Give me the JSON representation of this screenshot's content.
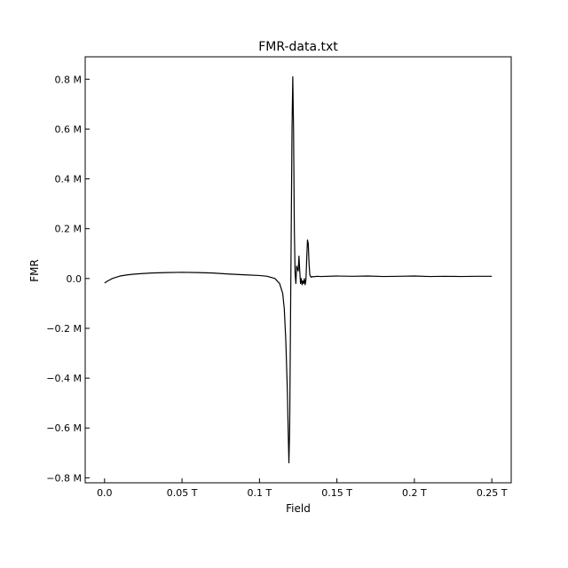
{
  "chart_data": {
    "type": "line",
    "title": "FMR-data.txt",
    "xlabel": "Field",
    "ylabel": "FMR",
    "xlim": [
      -0.0125,
      0.2625
    ],
    "ylim": [
      -820000,
      890000
    ],
    "grid": false,
    "x_ticks": [
      {
        "value": 0.0,
        "label": "0.0"
      },
      {
        "value": 0.05,
        "label": "0.05 T"
      },
      {
        "value": 0.1,
        "label": "0.1 T"
      },
      {
        "value": 0.15,
        "label": "0.15 T"
      },
      {
        "value": 0.2,
        "label": "0.2 T"
      },
      {
        "value": 0.25,
        "label": "0.25 T"
      }
    ],
    "y_ticks": [
      {
        "value": 800000,
        "label": "0.8 M"
      },
      {
        "value": 600000,
        "label": "0.6 M"
      },
      {
        "value": 400000,
        "label": "0.4 M"
      },
      {
        "value": 200000,
        "label": "0.2 M"
      },
      {
        "value": 0,
        "label": "0.0"
      },
      {
        "value": -200000,
        "label": "−0.2 M"
      },
      {
        "value": -400000,
        "label": "−0.4 M"
      },
      {
        "value": -600000,
        "label": "−0.6 M"
      },
      {
        "value": -800000,
        "label": "−0.8 M"
      }
    ],
    "series": [
      {
        "color": "#000000",
        "x": [
          0.0,
          0.002,
          0.005,
          0.01,
          0.015,
          0.02,
          0.03,
          0.04,
          0.05,
          0.06,
          0.07,
          0.08,
          0.09,
          0.1,
          0.105,
          0.11,
          0.113,
          0.115,
          0.116,
          0.117,
          0.118,
          0.1185,
          0.119,
          0.1195,
          0.12,
          0.1205,
          0.121,
          0.1215,
          0.122,
          0.1225,
          0.123,
          0.1235,
          0.124,
          0.125,
          0.1255,
          0.126,
          0.1265,
          0.127,
          0.1275,
          0.128,
          0.1285,
          0.129,
          0.1295,
          0.13,
          0.1305,
          0.131,
          0.1315,
          0.132,
          0.1325,
          0.133,
          0.1335,
          0.134,
          0.135,
          0.137,
          0.14,
          0.15,
          0.16,
          0.17,
          0.18,
          0.19,
          0.2,
          0.21,
          0.22,
          0.23,
          0.24,
          0.25
        ],
        "y": [
          -18000,
          -10000,
          0,
          10000,
          15000,
          18000,
          22000,
          24000,
          25000,
          24000,
          22000,
          18000,
          15000,
          12000,
          9000,
          0,
          -20000,
          -60000,
          -120000,
          -250000,
          -450000,
          -600000,
          -740000,
          -600000,
          -200000,
          200000,
          600000,
          810000,
          600000,
          200000,
          20000,
          -20000,
          50000,
          30000,
          90000,
          30000,
          -20000,
          0,
          -25000,
          -10000,
          -20000,
          0,
          -25000,
          -5000,
          80000,
          155000,
          140000,
          60000,
          15000,
          8000,
          5000,
          8000,
          7000,
          9000,
          8000,
          10000,
          9000,
          10000,
          8000,
          9000,
          10000,
          8000,
          9000,
          8000,
          9000,
          9000
        ]
      }
    ]
  }
}
